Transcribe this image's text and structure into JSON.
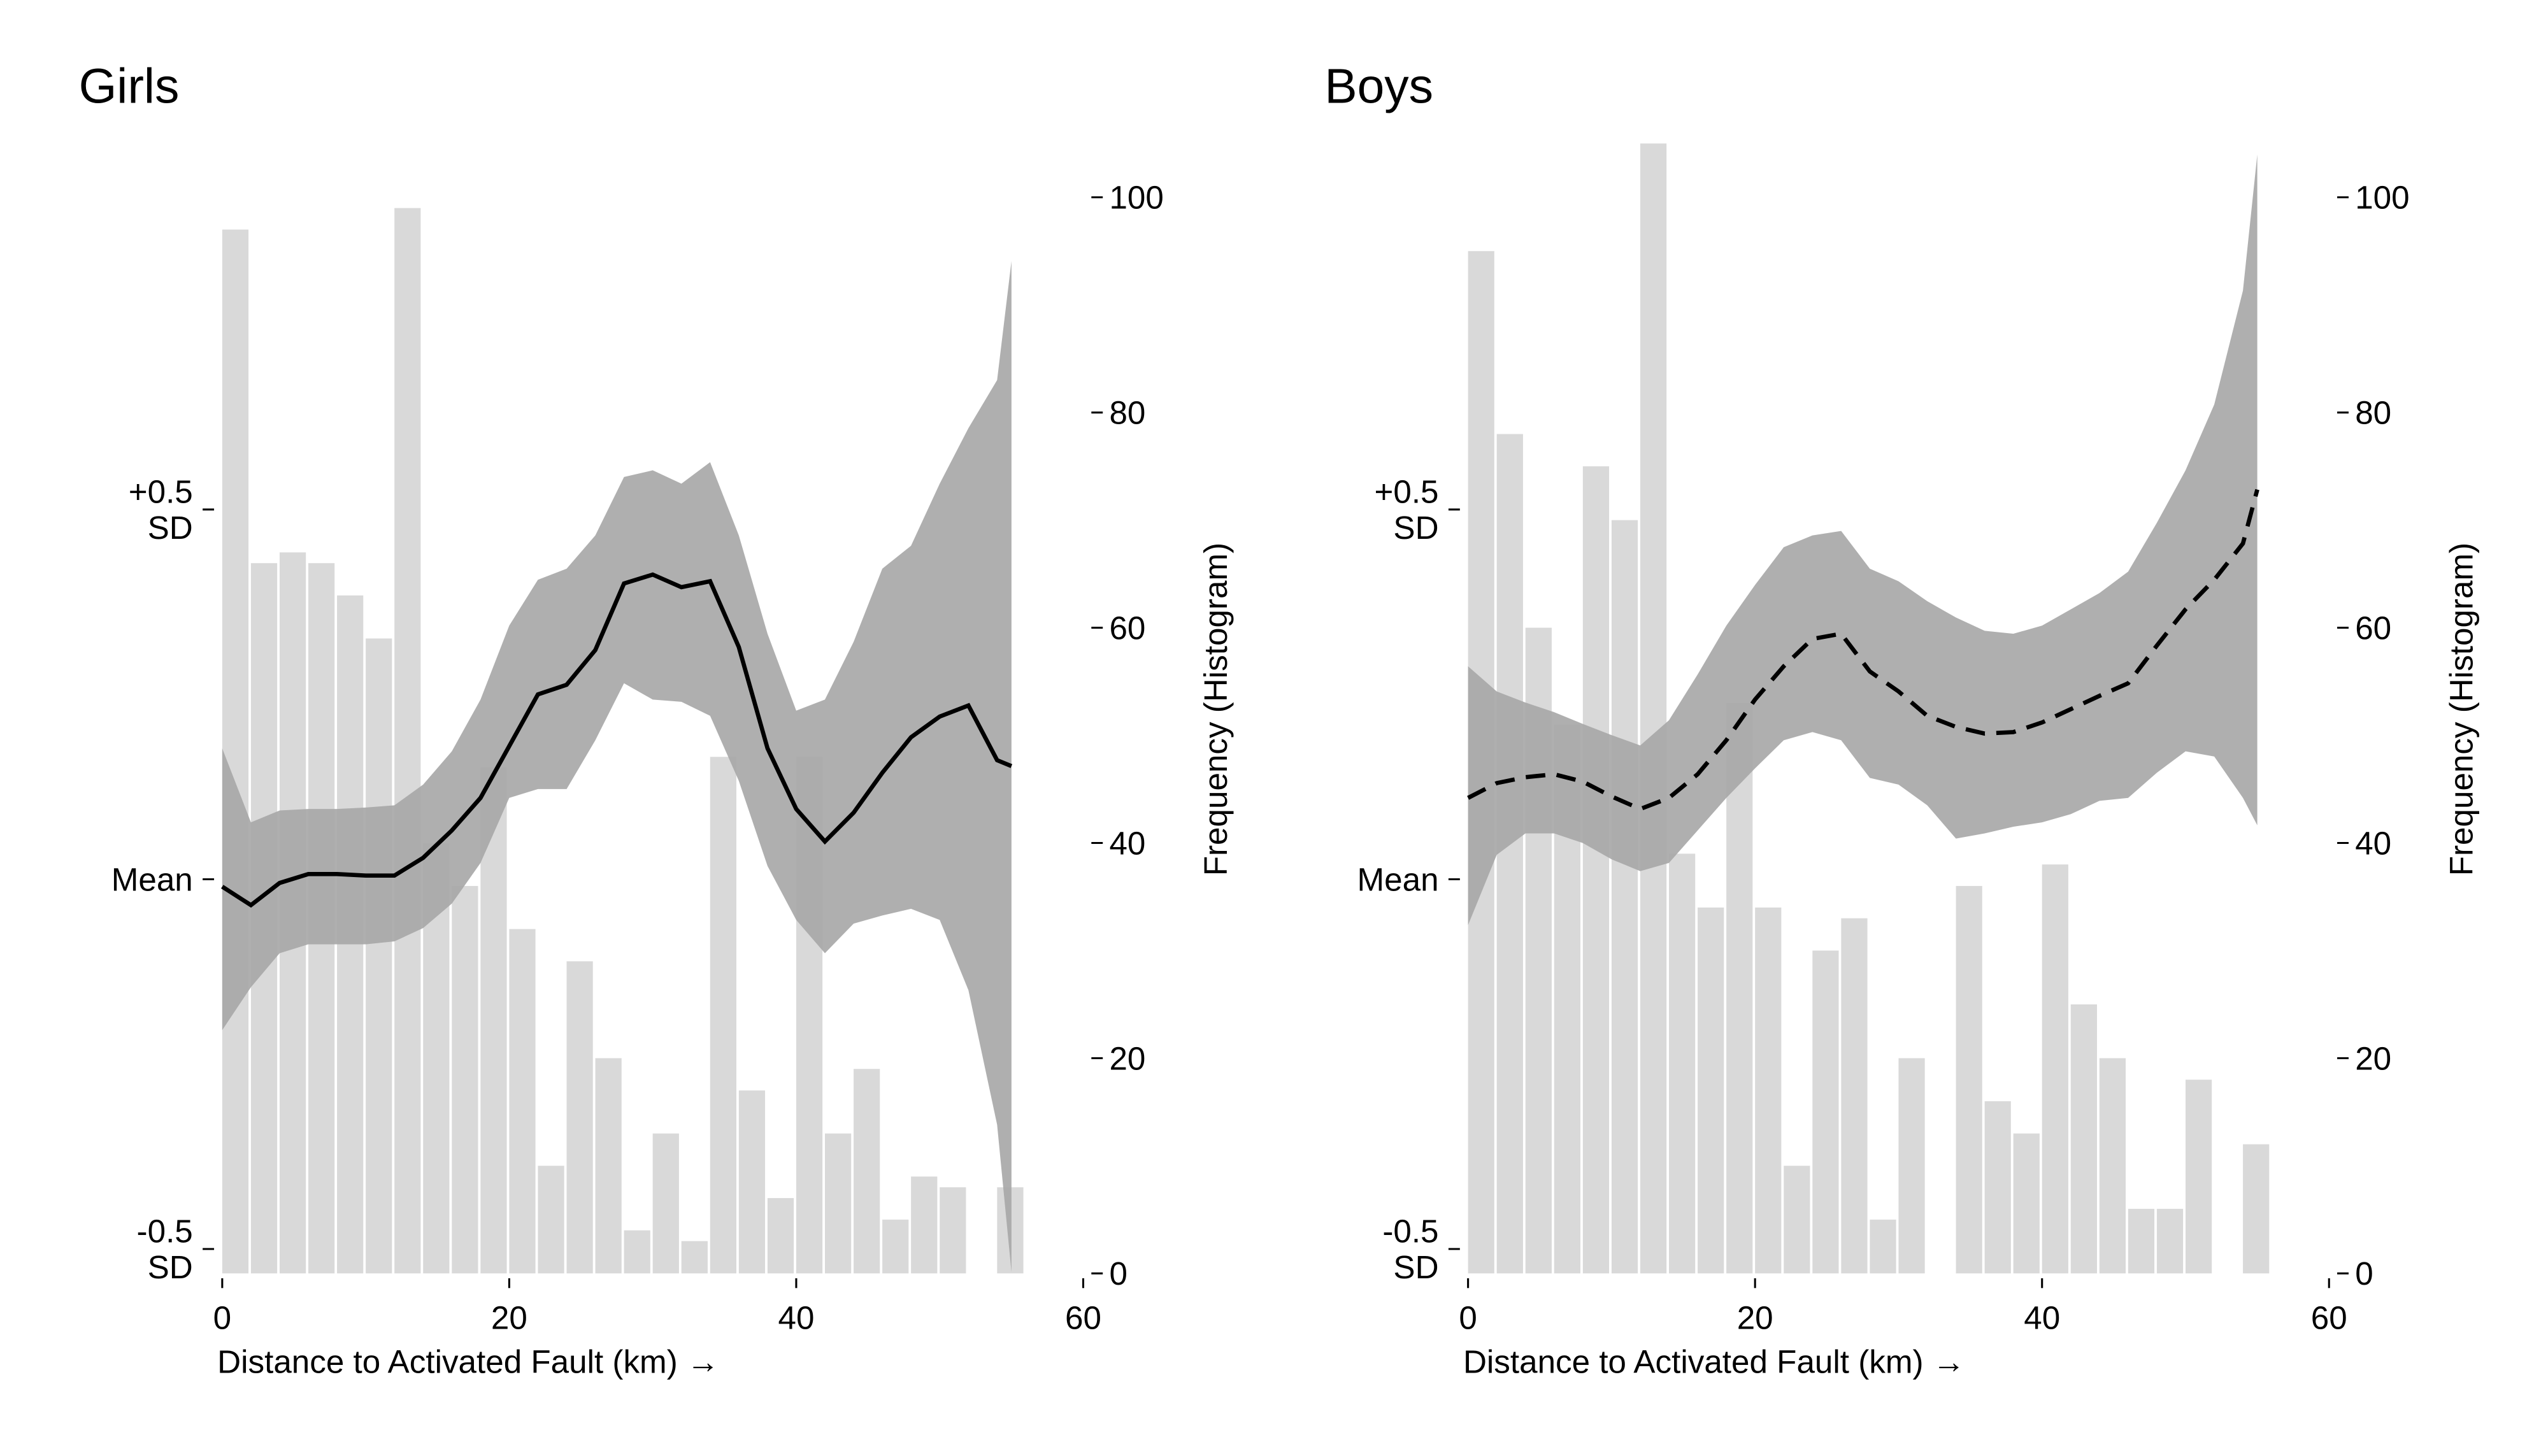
{
  "chart_data": [
    {
      "type": "combo",
      "title": "Girls",
      "xlabel": "Distance to Activated Fault (km) →",
      "y2label": "Frequency (Histogram)",
      "xlim": [
        0,
        60
      ],
      "xticks": [
        0,
        20,
        40,
        60
      ],
      "ylim": [
        -0.533,
        0.995
      ],
      "yticks": [
        {
          "value": -0.5,
          "label": "-0.5\nSD"
        },
        {
          "value": 0,
          "label": "Mean"
        },
        {
          "value": 0.5,
          "label": "+0.5\nSD"
        }
      ],
      "y2lim": [
        0,
        105
      ],
      "y2ticks": [
        0,
        20,
        40,
        60,
        80,
        100
      ],
      "histogram": {
        "color": "#d9d9d9",
        "bins": [
          0,
          2,
          4,
          6,
          8,
          10,
          12,
          14,
          16,
          18,
          20,
          22,
          24,
          26,
          28,
          30,
          32,
          34,
          36,
          38,
          40,
          42,
          44,
          46,
          48,
          50,
          52,
          54,
          56
        ],
        "counts": [
          97,
          66,
          67,
          66,
          63,
          59,
          99,
          40,
          36,
          47,
          32,
          10,
          29,
          20,
          4,
          13,
          3,
          48,
          17,
          7,
          48,
          13,
          19,
          5,
          9,
          8,
          0,
          8
        ]
      },
      "x": [
        0,
        2,
        4,
        6,
        8,
        10,
        12,
        14,
        16,
        18,
        20,
        22,
        24,
        26,
        28,
        30,
        32,
        34,
        36,
        38,
        40,
        42,
        44,
        46,
        48,
        50,
        52,
        54,
        55
      ],
      "line": {
        "color": "#000000",
        "dashed": false,
        "values": [
          -0.01,
          -0.035,
          -0.005,
          0.007,
          0.007,
          0.005,
          0.005,
          0.029,
          0.066,
          0.11,
          0.18,
          0.25,
          0.263,
          0.31,
          0.4,
          0.412,
          0.395,
          0.403,
          0.314,
          0.177,
          0.095,
          0.051,
          0.09,
          0.144,
          0.192,
          0.22,
          0.235,
          0.161,
          0.153
        ]
      },
      "band": {
        "color": "#a6a6a6",
        "lower": [
          -0.204,
          -0.146,
          -0.1,
          -0.088,
          -0.088,
          -0.088,
          -0.084,
          -0.066,
          -0.033,
          0.022,
          0.11,
          0.122,
          0.122,
          0.188,
          0.265,
          0.243,
          0.24,
          0.221,
          0.133,
          0.018,
          -0.055,
          -0.1,
          -0.06,
          -0.049,
          -0.04,
          -0.055,
          -0.15,
          -0.332,
          -0.531
        ],
        "upper": [
          0.177,
          0.077,
          0.093,
          0.095,
          0.095,
          0.097,
          0.1,
          0.128,
          0.173,
          0.243,
          0.343,
          0.405,
          0.42,
          0.465,
          0.544,
          0.553,
          0.535,
          0.564,
          0.465,
          0.332,
          0.228,
          0.243,
          0.321,
          0.42,
          0.451,
          0.535,
          0.61,
          0.675,
          0.836
        ]
      }
    },
    {
      "type": "combo",
      "title": "Boys",
      "xlabel": "Distance to Activated Fault (km) →",
      "y2label": "Frequency (Histogram)",
      "xlim": [
        0,
        60
      ],
      "xticks": [
        0,
        20,
        40,
        60
      ],
      "ylim": [
        -0.533,
        0.995
      ],
      "yticks": [
        {
          "value": -0.5,
          "label": "-0.5\nSD"
        },
        {
          "value": 0,
          "label": "Mean"
        },
        {
          "value": 0.5,
          "label": "+0.5\nSD"
        }
      ],
      "y2lim": [
        0,
        105
      ],
      "y2ticks": [
        0,
        20,
        40,
        60,
        80,
        100
      ],
      "histogram": {
        "color": "#d9d9d9",
        "bins": [
          0,
          2,
          4,
          6,
          8,
          10,
          12,
          14,
          16,
          18,
          20,
          22,
          24,
          26,
          28,
          30,
          32,
          34,
          36,
          38,
          40,
          42,
          44,
          46,
          48,
          50,
          52,
          54,
          56
        ],
        "counts": [
          95,
          78,
          60,
          51,
          75,
          70,
          105,
          39,
          34,
          53,
          34,
          10,
          30,
          33,
          5,
          20,
          0,
          36,
          16,
          13,
          38,
          25,
          20,
          6,
          6,
          18,
          0,
          12
        ]
      },
      "x": [
        0,
        2,
        4,
        6,
        8,
        10,
        12,
        14,
        16,
        18,
        20,
        22,
        24,
        26,
        28,
        30,
        32,
        34,
        36,
        38,
        40,
        42,
        44,
        46,
        48,
        50,
        52,
        54,
        55
      ],
      "line": {
        "color": "#000000",
        "dashed": true,
        "values": [
          0.11,
          0.13,
          0.138,
          0.142,
          0.132,
          0.112,
          0.095,
          0.11,
          0.142,
          0.188,
          0.243,
          0.288,
          0.325,
          0.332,
          0.281,
          0.254,
          0.221,
          0.206,
          0.197,
          0.199,
          0.212,
          0.23,
          0.248,
          0.265,
          0.316,
          0.365,
          0.405,
          0.454,
          0.527
        ]
      },
      "band": {
        "color": "#a6a6a6",
        "lower": [
          -0.062,
          0.033,
          0.062,
          0.062,
          0.049,
          0.027,
          0.011,
          0.022,
          0.066,
          0.11,
          0.15,
          0.188,
          0.199,
          0.188,
          0.137,
          0.128,
          0.1,
          0.055,
          0.062,
          0.071,
          0.077,
          0.088,
          0.106,
          0.11,
          0.144,
          0.173,
          0.166,
          0.11,
          0.073
        ],
        "upper": [
          0.288,
          0.254,
          0.239,
          0.226,
          0.21,
          0.195,
          0.181,
          0.215,
          0.277,
          0.343,
          0.398,
          0.449,
          0.465,
          0.471,
          0.42,
          0.403,
          0.376,
          0.354,
          0.336,
          0.332,
          0.343,
          0.365,
          0.387,
          0.416,
          0.482,
          0.553,
          0.642,
          0.796,
          0.98
        ]
      }
    }
  ]
}
